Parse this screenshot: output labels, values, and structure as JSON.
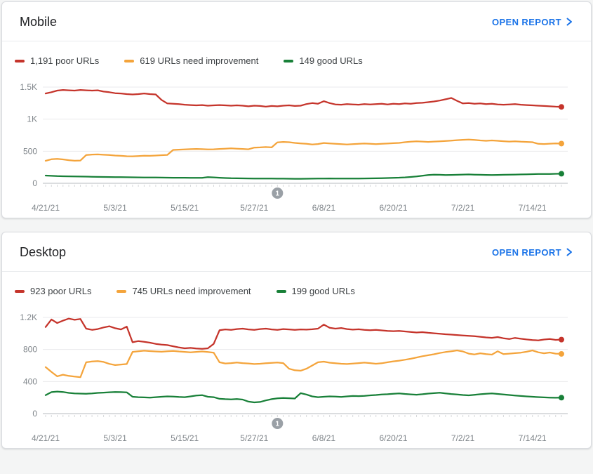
{
  "colors": {
    "poor": "#c5342b",
    "needs_improvement": "#f4a43b",
    "good": "#188038",
    "link": "#1a73e8",
    "axis_text": "#80868b",
    "gridline": "#e9eaec",
    "zero_line": "#b7bbbf",
    "day_tick": "#d7d9db",
    "annotation_badge": "#9aa0a6",
    "card_border": "#dadce0",
    "legend_text": "#3c4043",
    "title_text": "#202124"
  },
  "cards": [
    {
      "title": "Mobile",
      "open_report_label": "OPEN REPORT",
      "legend": [
        {
          "label": "1,191 poor URLs",
          "color": "#c5342b"
        },
        {
          "label": "619 URLs need improvement",
          "color": "#f4a43b"
        },
        {
          "label": "149 good URLs",
          "color": "#188038"
        }
      ]
    },
    {
      "title": "Desktop",
      "open_report_label": "OPEN REPORT",
      "legend": [
        {
          "label": "923 poor URLs",
          "color": "#c5342b"
        },
        {
          "label": "745 URLs need improvement",
          "color": "#f4a43b"
        },
        {
          "label": "199 good URLs",
          "color": "#188038"
        }
      ]
    }
  ],
  "chart_data": [
    {
      "type": "line",
      "title": "Mobile",
      "ylim": [
        0,
        1500
      ],
      "grid": true,
      "legend_position": "top",
      "yticks": [
        {
          "value": 1500,
          "label": "1.5K"
        },
        {
          "value": 1000,
          "label": "1K"
        },
        {
          "value": 500,
          "label": "500"
        },
        {
          "value": 0,
          "label": "0"
        }
      ],
      "x_tick_labels": [
        "4/21/21",
        "5/3/21",
        "5/15/21",
        "5/27/21",
        "6/8/21",
        "6/20/21",
        "7/2/21",
        "7/14/21"
      ],
      "x_tick_indices": [
        0,
        12,
        24,
        36,
        48,
        60,
        72,
        84
      ],
      "annotations": [
        {
          "label": "1",
          "index": 40
        }
      ],
      "series": [
        {
          "name": "poor URLs",
          "current": 1191,
          "color": "#c5342b",
          "values": [
            1400,
            1420,
            1445,
            1455,
            1450,
            1445,
            1455,
            1450,
            1445,
            1450,
            1430,
            1420,
            1405,
            1400,
            1390,
            1385,
            1390,
            1400,
            1390,
            1385,
            1300,
            1245,
            1240,
            1235,
            1225,
            1220,
            1215,
            1220,
            1210,
            1215,
            1220,
            1215,
            1210,
            1215,
            1210,
            1200,
            1210,
            1205,
            1195,
            1205,
            1200,
            1210,
            1215,
            1205,
            1210,
            1235,
            1250,
            1240,
            1280,
            1250,
            1230,
            1225,
            1235,
            1230,
            1225,
            1235,
            1230,
            1235,
            1240,
            1230,
            1240,
            1235,
            1245,
            1240,
            1250,
            1255,
            1265,
            1275,
            1290,
            1310,
            1330,
            1285,
            1245,
            1250,
            1240,
            1245,
            1235,
            1240,
            1230,
            1225,
            1230,
            1235,
            1225,
            1220,
            1215,
            1210,
            1205,
            1200,
            1195,
            1191
          ]
        },
        {
          "name": "URLs need improvement",
          "current": 619,
          "color": "#f4a43b",
          "values": [
            350,
            375,
            380,
            372,
            360,
            352,
            355,
            440,
            448,
            450,
            445,
            440,
            432,
            428,
            422,
            420,
            425,
            430,
            428,
            432,
            438,
            442,
            520,
            525,
            528,
            532,
            535,
            532,
            528,
            530,
            535,
            540,
            545,
            540,
            535,
            530,
            556,
            560,
            565,
            560,
            638,
            645,
            640,
            630,
            622,
            615,
            605,
            612,
            628,
            622,
            615,
            610,
            605,
            610,
            615,
            620,
            615,
            610,
            615,
            620,
            625,
            630,
            640,
            648,
            655,
            650,
            645,
            650,
            655,
            660,
            665,
            672,
            678,
            682,
            675,
            668,
            662,
            668,
            662,
            656,
            650,
            655,
            648,
            645,
            640,
            615,
            612,
            618,
            622,
            619
          ]
        },
        {
          "name": "good URLs",
          "current": 149,
          "color": "#188038",
          "values": [
            120,
            116,
            112,
            110,
            108,
            106,
            105,
            104,
            102,
            100,
            98,
            97,
            96,
            95,
            94,
            93,
            92,
            91,
            90,
            90,
            89,
            88,
            87,
            86,
            86,
            85,
            85,
            84,
            96,
            92,
            86,
            82,
            79,
            78,
            77,
            76,
            75,
            74,
            74,
            73,
            72,
            72,
            71,
            70,
            70,
            71,
            72,
            73,
            75,
            76,
            75,
            74,
            73,
            74,
            75,
            76,
            77,
            78,
            80,
            82,
            85,
            88,
            92,
            98,
            106,
            118,
            128,
            135,
            132,
            128,
            130,
            133,
            136,
            138,
            135,
            132,
            130,
            128,
            130,
            132,
            134,
            136,
            138,
            140,
            142,
            144,
            145,
            146,
            148,
            149
          ]
        }
      ]
    },
    {
      "type": "line",
      "title": "Desktop",
      "ylim": [
        0,
        1200
      ],
      "grid": true,
      "legend_position": "top",
      "yticks": [
        {
          "value": 1200,
          "label": "1.2K"
        },
        {
          "value": 800,
          "label": "800"
        },
        {
          "value": 400,
          "label": "400"
        },
        {
          "value": 0,
          "label": "0"
        }
      ],
      "x_tick_labels": [
        "4/21/21",
        "5/3/21",
        "5/15/21",
        "5/27/21",
        "6/8/21",
        "6/20/21",
        "7/2/21",
        "7/14/21"
      ],
      "x_tick_indices": [
        0,
        12,
        24,
        36,
        48,
        60,
        72,
        84
      ],
      "annotations": [
        {
          "label": "1",
          "index": 40
        }
      ],
      "series": [
        {
          "name": "poor URLs",
          "current": 923,
          "color": "#c5342b",
          "values": [
            1080,
            1175,
            1130,
            1160,
            1185,
            1170,
            1180,
            1060,
            1045,
            1055,
            1075,
            1090,
            1065,
            1050,
            1085,
            890,
            905,
            895,
            885,
            870,
            860,
            855,
            840,
            825,
            815,
            820,
            812,
            808,
            815,
            870,
            1040,
            1050,
            1045,
            1055,
            1060,
            1050,
            1045,
            1055,
            1060,
            1050,
            1045,
            1055,
            1050,
            1045,
            1050,
            1048,
            1052,
            1060,
            1110,
            1070,
            1060,
            1068,
            1055,
            1048,
            1052,
            1045,
            1040,
            1045,
            1038,
            1032,
            1028,
            1032,
            1025,
            1018,
            1012,
            1016,
            1008,
            1002,
            996,
            990,
            985,
            980,
            975,
            970,
            965,
            958,
            950,
            945,
            955,
            940,
            930,
            944,
            934,
            925,
            918,
            914,
            924,
            930,
            920,
            923
          ]
        },
        {
          "name": "URLs need improvement",
          "current": 745,
          "color": "#f4a43b",
          "values": [
            580,
            520,
            465,
            485,
            470,
            462,
            455,
            640,
            650,
            655,
            645,
            620,
            605,
            612,
            618,
            770,
            778,
            785,
            780,
            775,
            772,
            778,
            782,
            775,
            770,
            765,
            770,
            775,
            768,
            760,
            640,
            625,
            630,
            638,
            630,
            625,
            618,
            622,
            628,
            632,
            638,
            630,
            560,
            540,
            535,
            560,
            600,
            640,
            648,
            635,
            628,
            622,
            618,
            624,
            630,
            636,
            630,
            622,
            628,
            640,
            652,
            660,
            672,
            684,
            700,
            716,
            728,
            740,
            756,
            768,
            778,
            788,
            775,
            748,
            738,
            752,
            742,
            736,
            778,
            742,
            748,
            754,
            760,
            772,
            788,
            765,
            752,
            762,
            748,
            745
          ]
        },
        {
          "name": "good URLs",
          "current": 199,
          "color": "#188038",
          "values": [
            230,
            268,
            275,
            270,
            258,
            252,
            250,
            248,
            252,
            258,
            262,
            266,
            270,
            268,
            265,
            210,
            205,
            202,
            200,
            205,
            210,
            215,
            212,
            208,
            205,
            215,
            225,
            230,
            210,
            205,
            185,
            180,
            178,
            182,
            175,
            150,
            140,
            145,
            165,
            180,
            190,
            195,
            192,
            188,
            255,
            238,
            215,
            205,
            210,
            215,
            212,
            208,
            215,
            220,
            218,
            222,
            228,
            232,
            238,
            242,
            248,
            252,
            245,
            240,
            236,
            242,
            250,
            255,
            260,
            252,
            244,
            238,
            232,
            228,
            235,
            242,
            248,
            252,
            245,
            238,
            232,
            226,
            220,
            215,
            210,
            206,
            202,
            200,
            198,
            199
          ]
        }
      ]
    }
  ]
}
